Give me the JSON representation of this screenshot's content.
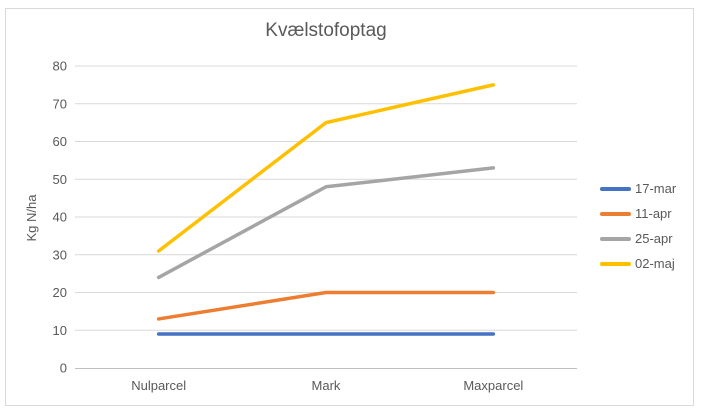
{
  "chart_data": {
    "type": "line",
    "title": "Kvælstofoptag",
    "categories": [
      "Nulparcel",
      "Mark",
      "Maxparcel"
    ],
    "series": [
      {
        "name": "17-mar",
        "color": "#4472C4",
        "values": [
          9,
          9,
          9
        ]
      },
      {
        "name": "11-apr",
        "color": "#ED7D31",
        "values": [
          13,
          20,
          20
        ]
      },
      {
        "name": "25-apr",
        "color": "#A5A5A5",
        "values": [
          24,
          48,
          53
        ]
      },
      {
        "name": "02-maj",
        "color": "#FFC000",
        "values": [
          31,
          65,
          75
        ]
      }
    ],
    "xlabel": "",
    "ylabel": "Kg N/ha",
    "ylim": [
      0,
      80
    ],
    "y_ticks": [
      0,
      10,
      20,
      30,
      40,
      50,
      60,
      70,
      80
    ],
    "grid": true,
    "legend_position": "right",
    "colors": {
      "gridline": "#D9D9D9",
      "axis_line": "#BFBFBF",
      "text": "#595959",
      "frame_border": "#D9D9D9",
      "background": "#FFFFFF"
    }
  }
}
